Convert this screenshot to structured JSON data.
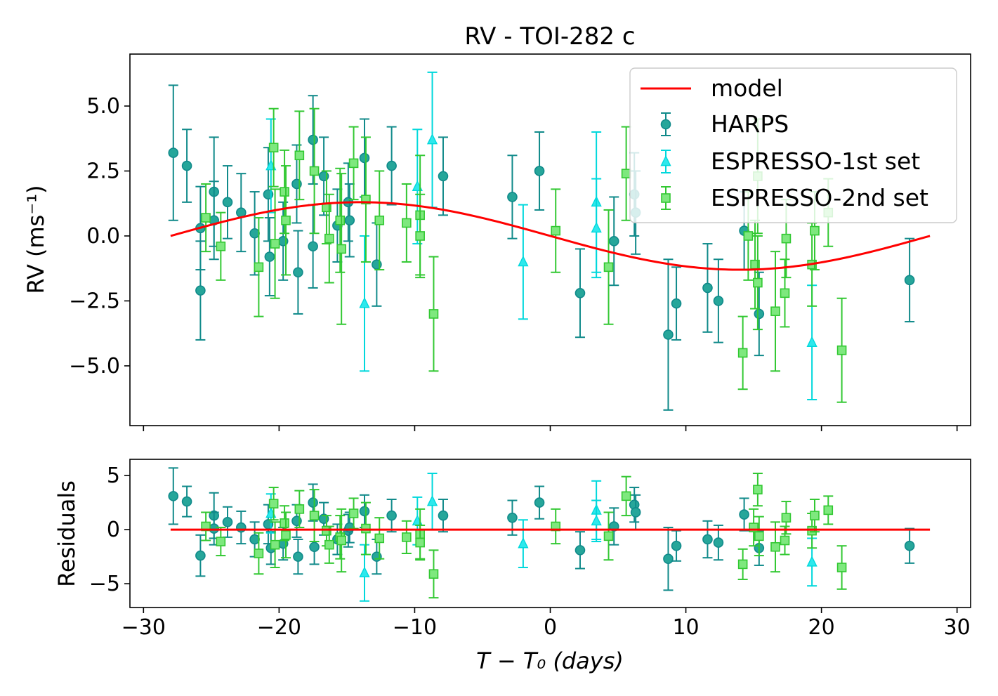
{
  "chart_data": {
    "type": "scatter",
    "title": "RV - TOI-282 c",
    "xlabel": "T − T₀ (days)",
    "x_ticks": [
      -30,
      -20,
      -10,
      0,
      10,
      20,
      30
    ],
    "x_tick_labels": [
      "−30",
      "−20",
      "−10",
      "0",
      "10",
      "20",
      "30"
    ],
    "xlim": [
      -31,
      31
    ],
    "colors": {
      "model": "#ff0000",
      "HARPS": "#108a8a",
      "ESPRESSO-1st set": "#00d8dc",
      "ESPRESSO-2nd set": "#32c832"
    },
    "legend": [
      "model",
      "HARPS",
      "ESPRESSO-1st set",
      "ESPRESSO-2nd set"
    ],
    "legend_loc": "top-right",
    "panels": [
      {
        "name": "rv",
        "ylabel": "RV (ms⁻¹)",
        "ylim": [
          -7.3,
          7.0
        ],
        "y_ticks": [
          5.0,
          2.5,
          0.0,
          -2.5,
          -5.0
        ],
        "y_tick_labels": [
          "5.0",
          "2.5",
          "0.0",
          "−2.5",
          "−5.0"
        ],
        "model": {
          "amplitude": 1.3,
          "period": 56,
          "x_start": -28,
          "x_end": 28
        },
        "series": [
          {
            "name": "HARPS",
            "marker": "circle",
            "x": [
              -27.8,
              -26.8,
              -25.8,
              -25.8,
              -24.8,
              -24.8,
              -23.8,
              -22.8,
              -21.8,
              -20.8,
              -20.7,
              -19.7,
              -18.7,
              -18.6,
              -17.5,
              -17.5,
              -16.7,
              -15.7,
              -14.9,
              -14.8,
              -13.7,
              -12.8,
              -11.7,
              -7.9,
              -2.8,
              -0.8,
              2.2,
              4.7,
              6.2,
              6.3,
              8.7,
              9.3,
              11.6,
              12.4,
              14.3,
              15.4,
              26.5
            ],
            "y": [
              3.2,
              2.7,
              0.3,
              -2.1,
              1.7,
              0.6,
              1.3,
              0.9,
              0.1,
              1.6,
              -0.8,
              -0.2,
              2.0,
              -1.4,
              3.7,
              -0.4,
              2.3,
              0.4,
              1.3,
              0.6,
              3.0,
              -1.1,
              2.7,
              2.3,
              1.5,
              2.5,
              -2.2,
              -0.2,
              1.6,
              0.9,
              -3.8,
              -2.6,
              -2.0,
              -2.5,
              0.2,
              -3.0,
              -1.7
            ],
            "err": [
              2.6,
              1.4,
              1.6,
              1.9,
              2.1,
              1.5,
              1.4,
              1.5,
              1.6,
              1.8,
              1.5,
              1.5,
              1.5,
              1.6,
              1.7,
              1.6,
              1.5,
              1.4,
              1.5,
              1.4,
              1.5,
              1.6,
              1.5,
              1.5,
              1.6,
              1.5,
              1.7,
              1.7,
              1.6,
              1.6,
              2.9,
              1.4,
              1.7,
              1.6,
              1.5,
              1.6,
              1.6
            ]
          },
          {
            "name": "ESPRESSO-1st set",
            "marker": "triangle",
            "x": [
              -20.6,
              -13.7,
              -9.8,
              -8.7,
              -2.0,
              3.4,
              3.4,
              19.3
            ],
            "y": [
              2.7,
              -2.6,
              1.9,
              3.7,
              -1.0,
              1.3,
              0.3,
              -4.1
            ],
            "err": [
              1.8,
              2.6,
              2.2,
              2.6,
              2.2,
              2.7,
              1.9,
              2.2
            ]
          },
          {
            "name": "ESPRESSO-2nd set",
            "marker": "square",
            "x": [
              -25.4,
              -24.3,
              -21.5,
              -20.4,
              -20.3,
              -19.6,
              -19.5,
              -18.5,
              -17.4,
              -16.5,
              -16.3,
              -15.5,
              -15.4,
              -14.5,
              -13.6,
              -12.6,
              -10.6,
              -9.6,
              -9.6,
              -8.6,
              0.4,
              4.3,
              5.6,
              14.2,
              14.6,
              15.1,
              15.3,
              15.3,
              16.6,
              17.3,
              17.4,
              19.3,
              19.5,
              20.5,
              21.5
            ],
            "y": [
              0.7,
              -0.4,
              -1.2,
              3.4,
              -0.3,
              1.7,
              0.6,
              3.1,
              2.5,
              1.1,
              -0.1,
              0.6,
              -0.5,
              2.8,
              1.4,
              0.6,
              0.5,
              0.8,
              0.0,
              -3.0,
              0.2,
              -1.2,
              2.4,
              -4.5,
              0.0,
              -1.1,
              2.3,
              -1.8,
              -2.9,
              -2.2,
              -0.1,
              -1.1,
              0.2,
              0.9,
              -4.4
            ],
            "err": [
              1.3,
              1.3,
              1.9,
              1.5,
              2.1,
              1.6,
              2.1,
              1.7,
              2.4,
              1.4,
              1.7,
              2.0,
              2.9,
              1.4,
              2.4,
              1.9,
              1.5,
              2.3,
              1.6,
              2.2,
              1.6,
              2.2,
              1.8,
              1.4,
              1.7,
              1.7,
              2.2,
              1.8,
              2.3,
              1.3,
              1.5,
              1.6,
              1.5,
              1.3,
              2.0
            ]
          }
        ]
      },
      {
        "name": "residuals",
        "ylabel": "Residuals",
        "ylim": [
          -7.2,
          6.5
        ],
        "y_ticks": [
          5,
          0,
          -5
        ],
        "y_tick_labels": [
          "5",
          "0",
          "−5"
        ],
        "model": {
          "amplitude": 0,
          "period": 56,
          "x_start": -28,
          "x_end": 28
        },
        "series": [
          {
            "name": "HARPS",
            "marker": "circle",
            "x": [
              -27.8,
              -26.8,
              -25.8,
              -24.8,
              -24.8,
              -23.8,
              -22.8,
              -21.8,
              -20.8,
              -20.6,
              -19.7,
              -18.7,
              -18.6,
              -17.5,
              -17.4,
              -16.7,
              -15.7,
              -14.9,
              -14.8,
              -13.7,
              -12.8,
              -11.7,
              -7.9,
              -2.8,
              -0.8,
              2.2,
              4.7,
              6.2,
              6.3,
              8.7,
              9.3,
              11.6,
              12.4,
              14.3,
              15.4,
              26.5
            ],
            "y": [
              3.1,
              2.6,
              -2.4,
              1.3,
              0.1,
              0.7,
              0.2,
              -0.9,
              0.5,
              -1.7,
              -1.3,
              0.8,
              -2.5,
              2.5,
              -1.6,
              1.0,
              -0.9,
              -0.1,
              0.2,
              1.7,
              -2.5,
              1.3,
              1.3,
              1.1,
              2.5,
              -1.9,
              0.3,
              2.3,
              1.6,
              -2.7,
              -1.5,
              -0.9,
              -1.2,
              1.4,
              -1.7,
              -1.5
            ],
            "err": [
              2.6,
              1.4,
              1.9,
              2.1,
              1.5,
              1.4,
              1.5,
              1.6,
              1.8,
              1.5,
              1.5,
              1.5,
              1.6,
              1.7,
              1.6,
              1.5,
              1.4,
              1.5,
              1.4,
              1.5,
              1.6,
              1.5,
              1.5,
              1.6,
              1.5,
              1.7,
              1.7,
              1.6,
              1.6,
              2.9,
              1.4,
              1.7,
              1.6,
              1.5,
              1.6,
              1.6
            ]
          },
          {
            "name": "ESPRESSO-1st set",
            "marker": "triangle",
            "x": [
              -20.6,
              -13.7,
              -9.8,
              -8.7,
              -2.0,
              3.4,
              3.4,
              19.3
            ],
            "y": [
              1.5,
              -4.0,
              0.8,
              2.6,
              -1.3,
              1.8,
              0.8,
              -3.0
            ],
            "err": [
              1.8,
              2.6,
              2.2,
              2.6,
              2.2,
              2.7,
              1.9,
              2.2
            ]
          },
          {
            "name": "ESPRESSO-2nd set",
            "marker": "square",
            "x": [
              -25.4,
              -24.3,
              -21.5,
              -20.4,
              -20.3,
              -19.6,
              -19.5,
              -18.5,
              -17.4,
              -16.5,
              -16.3,
              -15.5,
              -15.4,
              -14.5,
              -13.6,
              -12.6,
              -10.6,
              -9.6,
              -9.6,
              -8.6,
              0.4,
              4.3,
              5.6,
              14.2,
              15.0,
              15.3,
              15.4,
              16.6,
              17.3,
              17.4,
              19.3,
              19.5,
              20.5,
              21.5
            ],
            "y": [
              0.3,
              -1.1,
              -2.2,
              2.4,
              -1.4,
              0.6,
              -0.5,
              1.9,
              1.3,
              -0.1,
              -1.4,
              -0.7,
              -1.0,
              1.5,
              0.1,
              -0.8,
              -0.7,
              -0.4,
              -1.2,
              -4.1,
              0.3,
              -0.6,
              3.1,
              -3.2,
              0.2,
              3.7,
              -0.6,
              -1.6,
              -1.0,
              1.1,
              -0.1,
              1.3,
              1.8,
              -3.5
            ],
            "err": [
              1.3,
              1.3,
              1.9,
              1.5,
              2.1,
              1.6,
              2.1,
              1.7,
              2.4,
              1.4,
              1.7,
              2.0,
              2.9,
              1.4,
              2.4,
              1.9,
              1.5,
              2.3,
              1.6,
              2.2,
              1.6,
              2.2,
              1.8,
              1.4,
              1.7,
              1.5,
              1.8,
              2.3,
              1.3,
              1.5,
              1.6,
              1.5,
              1.3,
              2.0
            ]
          }
        ]
      }
    ]
  }
}
